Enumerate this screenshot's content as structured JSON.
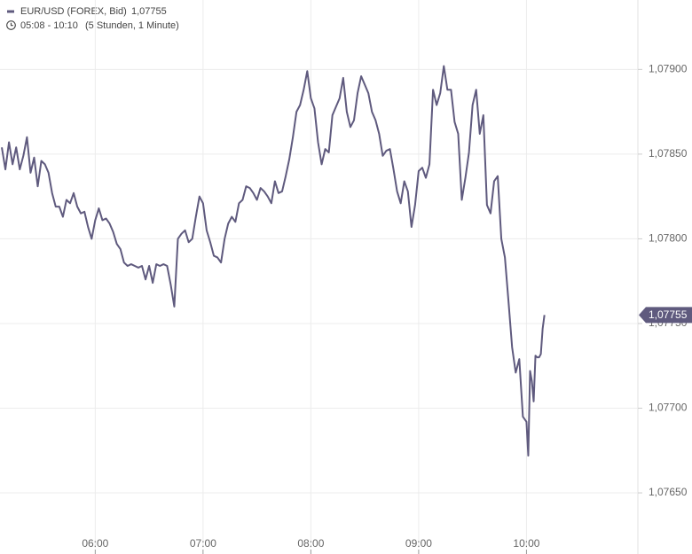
{
  "chart_data": {
    "type": "line",
    "title": "EUR/USD (FOREX, Bid)",
    "last_label": "1,07755",
    "subtitle": "05:08 - 10:10",
    "subtitle_note": "(5 Stunden, 1 Minute)",
    "xlim": [
      "05:07",
      "11:02"
    ],
    "xticks": [
      "06:00",
      "07:00",
      "08:00",
      "09:00",
      "10:00"
    ],
    "ylim": [
      1.07627,
      1.07941
    ],
    "yticks": [
      {
        "value": 1.0765,
        "label": "1,07650"
      },
      {
        "value": 1.077,
        "label": "1,07700"
      },
      {
        "value": 1.0775,
        "label": "1,07750"
      },
      {
        "value": 1.078,
        "label": "1,07800"
      },
      {
        "value": 1.0785,
        "label": "1,07850"
      },
      {
        "value": 1.079,
        "label": "1,07900"
      }
    ],
    "grid": true,
    "x": [
      "05:08",
      "05:10",
      "05:12",
      "05:14",
      "05:16",
      "05:18",
      "05:20",
      "05:22",
      "05:24",
      "05:26",
      "05:28",
      "05:30",
      "05:32",
      "05:34",
      "05:36",
      "05:38",
      "05:40",
      "05:42",
      "05:44",
      "05:46",
      "05:48",
      "05:50",
      "05:52",
      "05:54",
      "05:56",
      "05:58",
      "06:00",
      "06:02",
      "06:04",
      "06:06",
      "06:08",
      "06:10",
      "06:12",
      "06:14",
      "06:16",
      "06:18",
      "06:20",
      "06:22",
      "06:24",
      "06:26",
      "06:28",
      "06:30",
      "06:32",
      "06:34",
      "06:36",
      "06:38",
      "06:40",
      "06:42",
      "06:44",
      "06:46",
      "06:48",
      "06:50",
      "06:52",
      "06:54",
      "06:56",
      "06:58",
      "07:00",
      "07:02",
      "07:04",
      "07:06",
      "07:08",
      "07:10",
      "07:12",
      "07:14",
      "07:16",
      "07:18",
      "07:20",
      "07:22",
      "07:24",
      "07:26",
      "07:28",
      "07:30",
      "07:32",
      "07:34",
      "07:36",
      "07:38",
      "07:40",
      "07:42",
      "07:44",
      "07:46",
      "07:48",
      "07:50",
      "07:52",
      "07:54",
      "07:56",
      "07:58",
      "08:00",
      "08:02",
      "08:04",
      "08:06",
      "08:08",
      "08:10",
      "08:12",
      "08:14",
      "08:16",
      "08:18",
      "08:20",
      "08:22",
      "08:24",
      "08:26",
      "08:28",
      "08:30",
      "08:32",
      "08:34",
      "08:36",
      "08:38",
      "08:40",
      "08:42",
      "08:44",
      "08:46",
      "08:48",
      "08:50",
      "08:52",
      "08:54",
      "08:56",
      "08:58",
      "09:00",
      "09:02",
      "09:04",
      "09:06",
      "09:08",
      "09:10",
      "09:12",
      "09:14",
      "09:16",
      "09:18",
      "09:20",
      "09:22",
      "09:24",
      "09:26",
      "09:28",
      "09:30",
      "09:32",
      "09:34",
      "09:36",
      "09:38",
      "09:40",
      "09:42",
      "09:44",
      "09:46",
      "09:48",
      "09:50",
      "09:52",
      "09:54",
      "09:56",
      "09:58",
      "10:00",
      "10:01",
      "10:02",
      "10:03",
      "10:04",
      "10:05",
      "10:06",
      "10:07",
      "10:08",
      "10:09",
      "10:10"
    ],
    "series": [
      {
        "name": "EUR/USD (FOREX, Bid)",
        "color": "#5f5a7e",
        "values": [
          1.07854,
          1.07841,
          1.07857,
          1.07844,
          1.07854,
          1.07841,
          1.07849,
          1.0786,
          1.07839,
          1.07848,
          1.07831,
          1.07846,
          1.07844,
          1.07839,
          1.07827,
          1.07819,
          1.07819,
          1.07813,
          1.07823,
          1.07821,
          1.07827,
          1.07819,
          1.07815,
          1.07816,
          1.07807,
          1.078,
          1.07811,
          1.07818,
          1.07811,
          1.07812,
          1.07809,
          1.07804,
          1.07797,
          1.07794,
          1.07786,
          1.07784,
          1.07785,
          1.07784,
          1.07783,
          1.07784,
          1.07776,
          1.07784,
          1.07774,
          1.07785,
          1.07784,
          1.07785,
          1.07784,
          1.07773,
          1.0776,
          1.078,
          1.07803,
          1.07805,
          1.07798,
          1.078,
          1.07813,
          1.07825,
          1.07821,
          1.07805,
          1.07798,
          1.0779,
          1.07789,
          1.07786,
          1.078,
          1.07809,
          1.07813,
          1.0781,
          1.07821,
          1.07823,
          1.07831,
          1.0783,
          1.07827,
          1.07823,
          1.0783,
          1.07828,
          1.07825,
          1.07821,
          1.07834,
          1.07827,
          1.07828,
          1.07837,
          1.07847,
          1.0786,
          1.07875,
          1.07879,
          1.07888,
          1.07899,
          1.07883,
          1.07877,
          1.07857,
          1.07844,
          1.07853,
          1.07851,
          1.07873,
          1.07878,
          1.07883,
          1.07895,
          1.07875,
          1.07866,
          1.0787,
          1.07886,
          1.07896,
          1.07891,
          1.07886,
          1.07875,
          1.0787,
          1.07862,
          1.07849,
          1.07852,
          1.07853,
          1.07841,
          1.07828,
          1.07821,
          1.07834,
          1.07828,
          1.07807,
          1.0782,
          1.0784,
          1.07842,
          1.07836,
          1.07844,
          1.07888,
          1.07879,
          1.07886,
          1.07902,
          1.07888,
          1.07888,
          1.07869,
          1.07862,
          1.07823,
          1.07836,
          1.07851,
          1.07879,
          1.07888,
          1.07862,
          1.07873,
          1.0782,
          1.07815,
          1.07834,
          1.07837,
          1.078,
          1.07789,
          1.07763,
          1.07736,
          1.07721,
          1.07729,
          1.07695,
          1.07692,
          1.07672,
          1.07722,
          1.07716,
          1.07704,
          1.07731,
          1.0773,
          1.0773,
          1.07732,
          1.07747,
          1.07755
        ]
      }
    ]
  }
}
